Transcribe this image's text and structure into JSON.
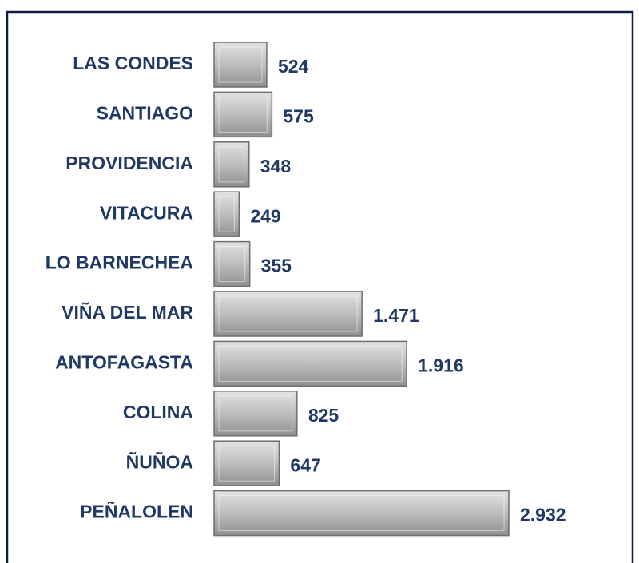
{
  "chart_data": {
    "type": "barh",
    "categories": [
      "LAS CONDES",
      "SANTIAGO",
      "PROVIDENCIA",
      "VITACURA",
      "LO BARNECHEA",
      "VIÑA DEL MAR",
      "ANTOFAGASTA",
      "COLINA",
      "ÑUÑOA",
      "PEÑALOLEN"
    ],
    "values": [
      524,
      575,
      348,
      249,
      355,
      1471,
      1916,
      825,
      647,
      2932
    ],
    "value_labels": [
      "524",
      "575",
      "348",
      "249",
      "355",
      "1.471",
      "1.916",
      "825",
      "647",
      "2.932"
    ],
    "color": "#b4b4b4"
  }
}
